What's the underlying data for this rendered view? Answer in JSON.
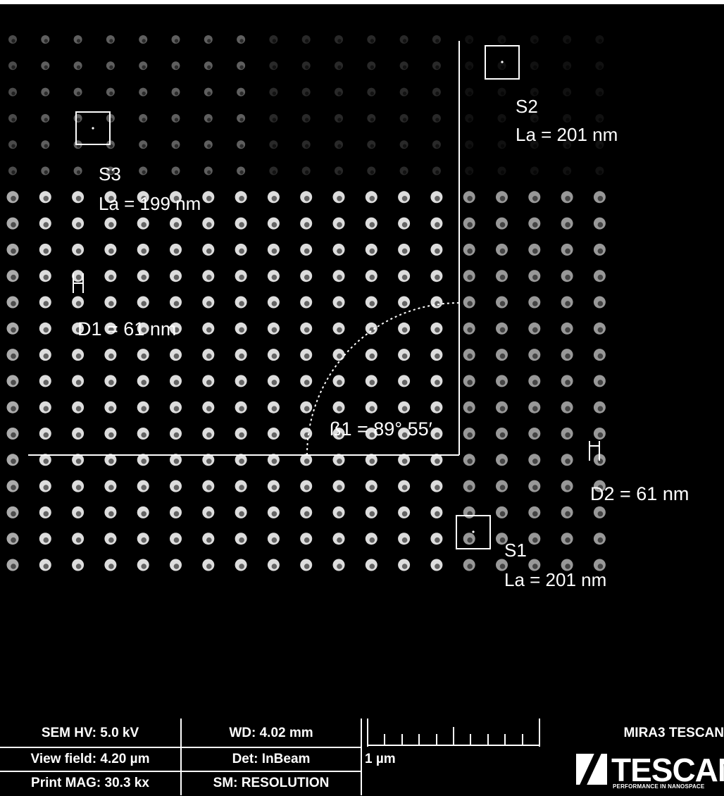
{
  "annotations": {
    "s3_name": "S3",
    "s3_la": "La = 199 nm",
    "s2_name": "S2",
    "s2_la": "La = 201 nm",
    "s1_name": "S1",
    "s1_la": "La = 201 nm",
    "d1": "D1 = 61 nm",
    "d2": "D2 = 61 nm",
    "beta1": "ß1 = 89° 55′"
  },
  "info_bar": {
    "hv": "SEM HV: 5.0 kV",
    "wd": "WD: 4.02 mm",
    "view_field": "View field: 4.20 µm",
    "detector": "Det: InBeam",
    "print_mag": "Print MAG: 30.3 kx",
    "scan_mode": "SM: RESOLUTION",
    "scale_label": "1 µm",
    "instrument": "MIRA3 TESCAN",
    "logo_text": "TESCAN",
    "logo_tagline": "PERFORMANCE IN NANOSPACE"
  },
  "colors": {
    "background": "#000000",
    "foreground": "#ffffff",
    "dot_bright": "#e8e8e8",
    "dot_dim": "#9a9a9a"
  }
}
